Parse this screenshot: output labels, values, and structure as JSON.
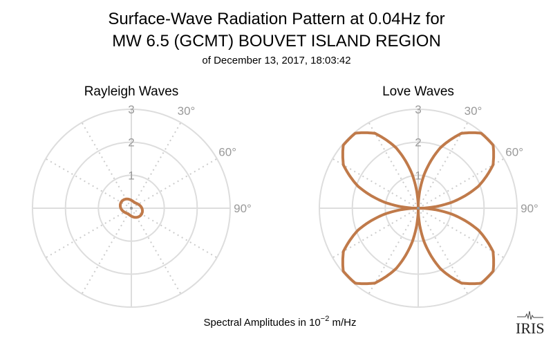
{
  "chart_data": {
    "type": "polar-line",
    "title": [
      "Surface-Wave Radiation Pattern at 0.04Hz for",
      "MW 6.5 (GCMT) BOUVET ISLAND REGION"
    ],
    "subtitle": "of December 13, 2017, 18:03:42",
    "xlabel_prefix": "Spectral Amplitudes in 10",
    "xlabel_exp": "−2",
    "xlabel_suffix": " m/Hz",
    "series_color": "#c07a4a",
    "radial_ticks": [
      "1",
      "2",
      "3"
    ],
    "rlim": [
      0,
      3
    ],
    "angle_ticks": [
      "30°",
      "60°",
      "90°"
    ],
    "azimuth_deg": [
      0,
      10,
      20,
      30,
      40,
      50,
      60,
      70,
      80,
      90,
      100,
      110,
      120,
      130,
      140,
      150,
      160,
      170,
      180,
      190,
      200,
      210,
      220,
      230,
      240,
      250,
      260,
      270,
      280,
      290,
      300,
      310,
      320,
      330,
      340,
      350
    ],
    "panels": [
      {
        "title": "Rayleigh Waves",
        "values": [
          0.24,
          0.219,
          0.205,
          0.2,
          0.205,
          0.219,
          0.24,
          0.266,
          0.294,
          0.32,
          0.341,
          0.355,
          0.36,
          0.355,
          0.341,
          0.32,
          0.294,
          0.266,
          0.24,
          0.219,
          0.205,
          0.2,
          0.205,
          0.219,
          0.24,
          0.266,
          0.294,
          0.32,
          0.341,
          0.355,
          0.36,
          0.355,
          0.341,
          0.32,
          0.294,
          0.266
        ]
      },
      {
        "title": "Love Waves",
        "values": [
          0,
          1.03,
          1.94,
          2.62,
          2.97,
          2.97,
          2.62,
          1.94,
          1.03,
          0,
          1.03,
          1.94,
          2.62,
          2.97,
          2.97,
          2.62,
          1.94,
          1.03,
          0,
          1.03,
          1.94,
          2.62,
          2.97,
          2.97,
          2.62,
          1.94,
          1.03,
          0,
          1.03,
          1.94,
          2.62,
          2.97,
          2.97,
          2.62,
          1.94,
          1.03
        ]
      }
    ]
  },
  "logo": {
    "text": "IRIS"
  }
}
